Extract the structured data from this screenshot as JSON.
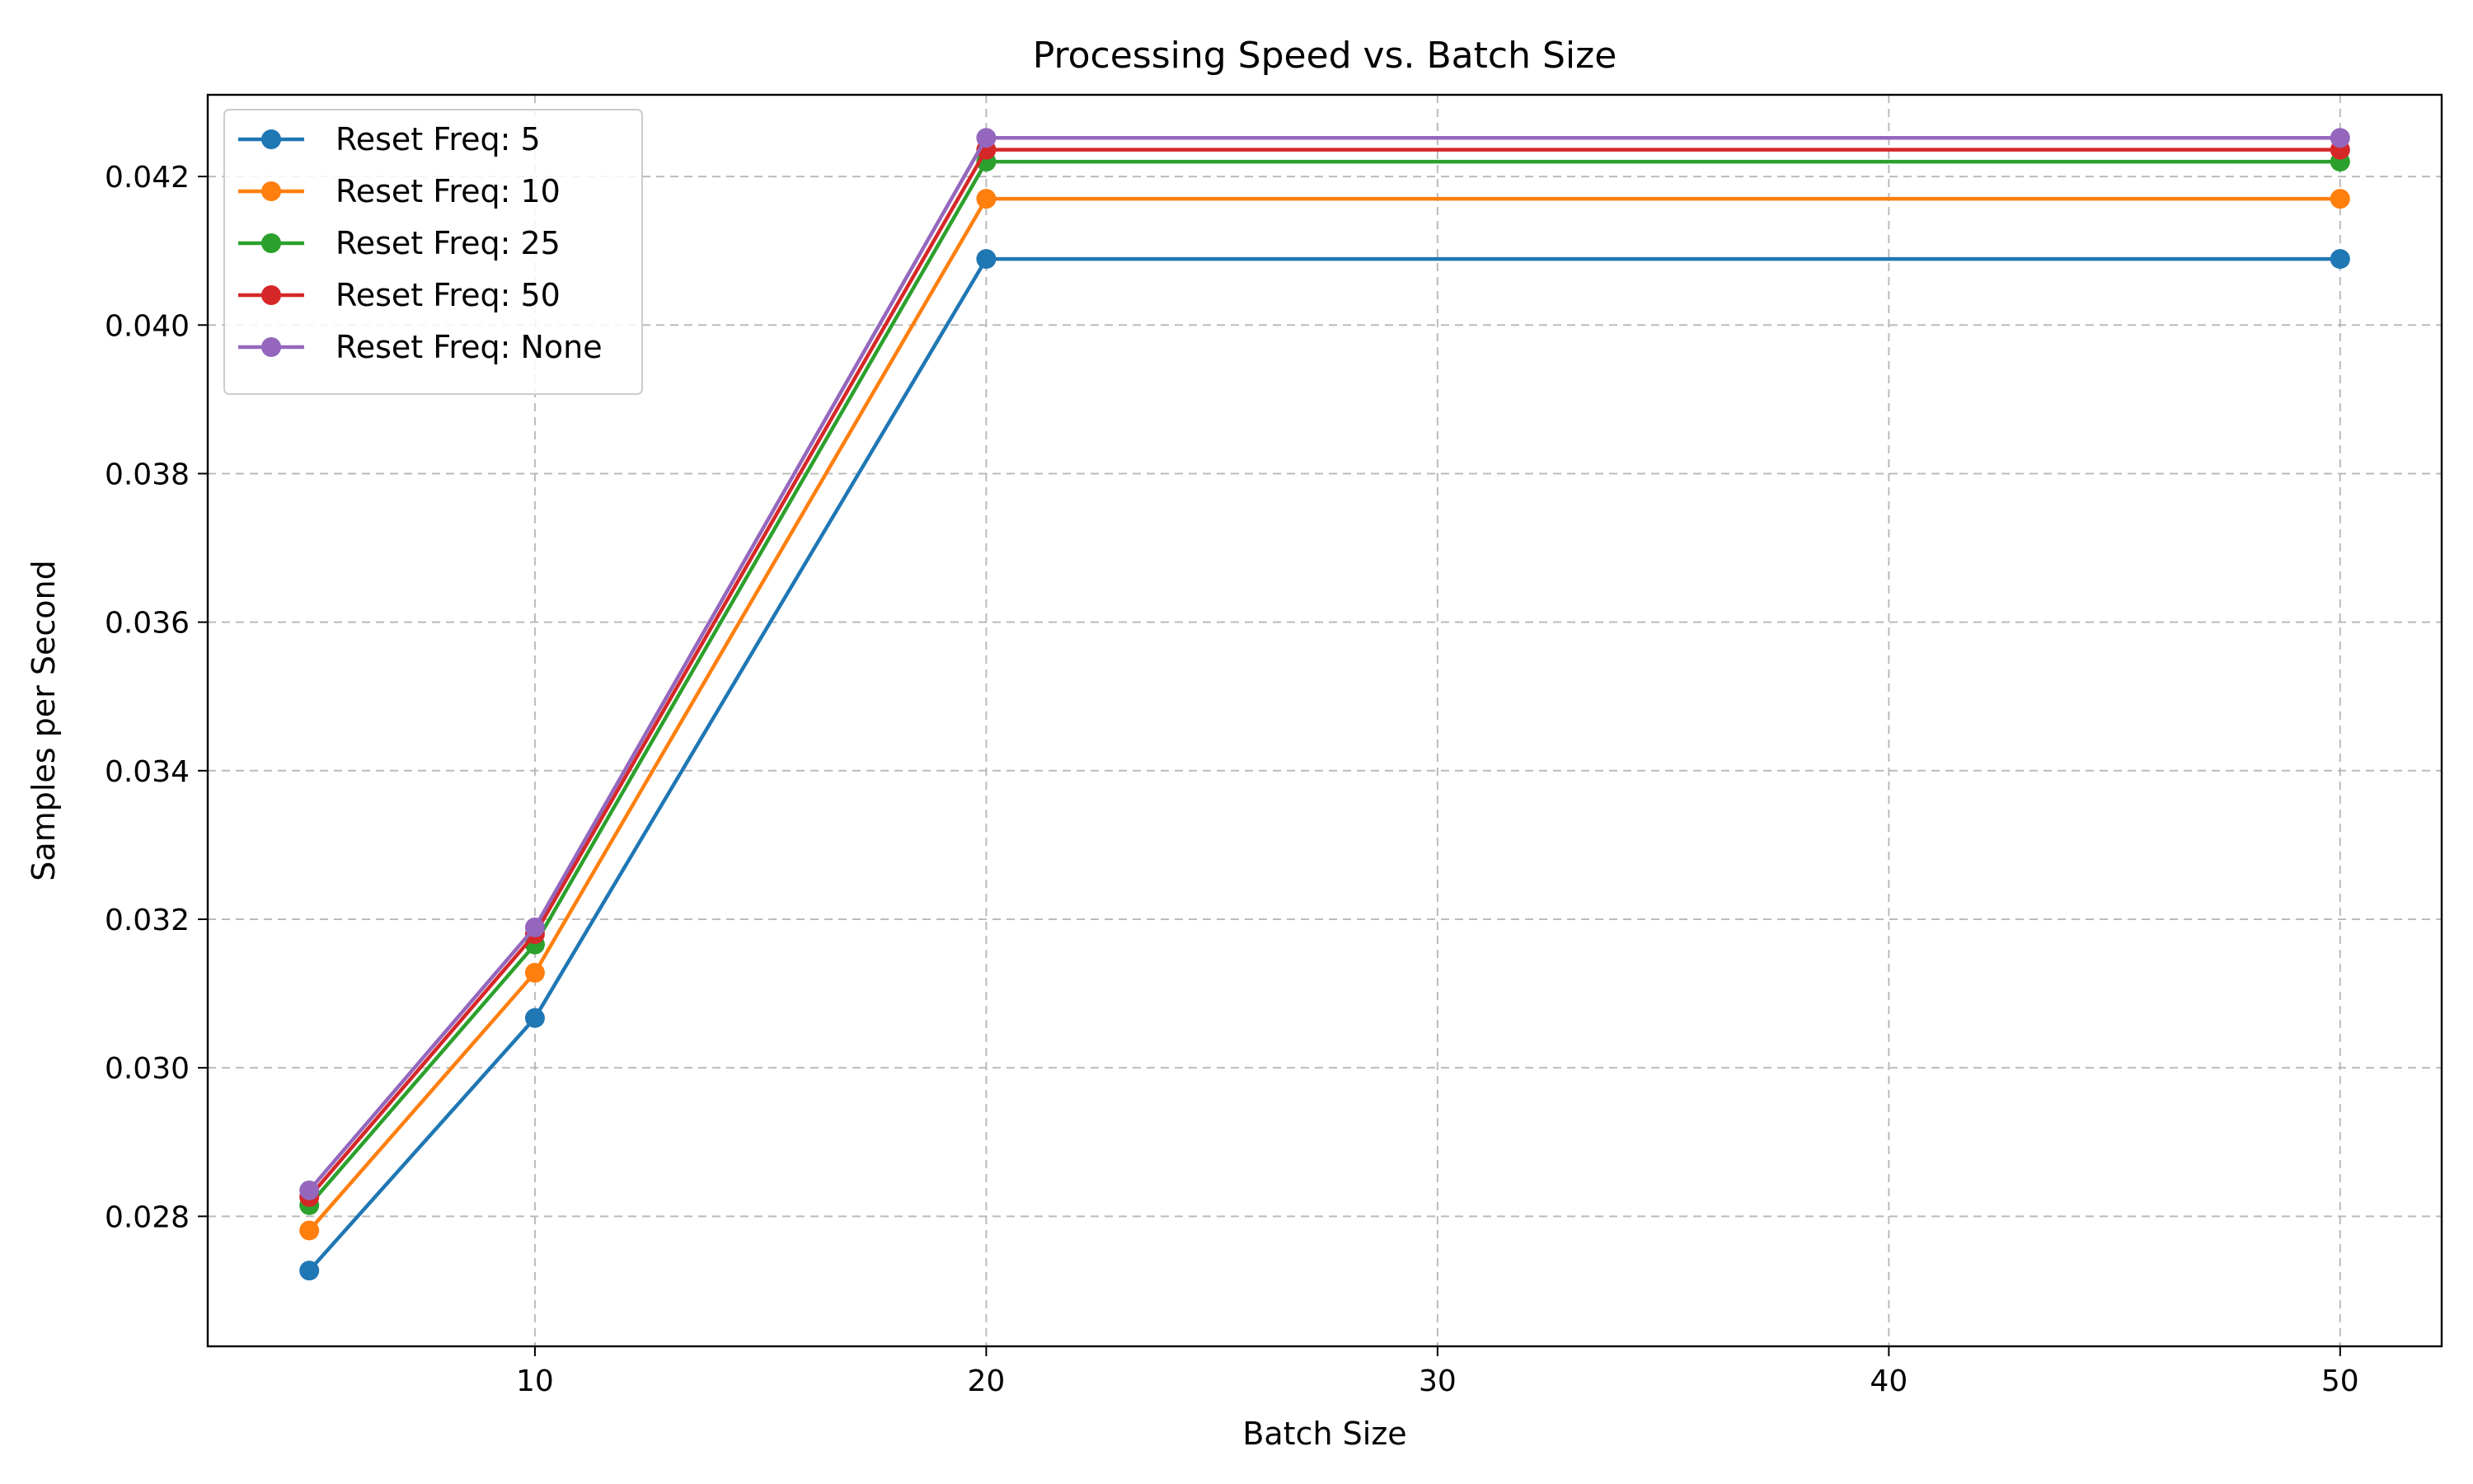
{
  "chart_data": {
    "type": "line",
    "title": "Processing Speed vs. Batch Size",
    "xlabel": "Batch Size",
    "ylabel": "Samples per Second",
    "x": [
      5,
      10,
      20,
      50
    ],
    "xlim": [
      2.75,
      52.25
    ],
    "ylim": [
      0.02625,
      0.0431
    ],
    "xticks": [
      10,
      20,
      30,
      40,
      50
    ],
    "yticks": [
      0.028,
      0.03,
      0.032,
      0.034,
      0.036,
      0.038,
      0.04,
      0.042
    ],
    "ytick_labels": [
      "0.028",
      "0.030",
      "0.032",
      "0.034",
      "0.036",
      "0.038",
      "0.040",
      "0.042"
    ],
    "grid": true,
    "legend_position": "top-left",
    "series": [
      {
        "name": "Reset Freq: 5",
        "color": "#1f77b4",
        "values": [
          0.02727,
          0.03067,
          0.04089,
          0.04089
        ]
      },
      {
        "name": "Reset Freq: 10",
        "color": "#ff7f0e",
        "values": [
          0.02781,
          0.03128,
          0.0417,
          0.0417
        ]
      },
      {
        "name": "Reset Freq: 25",
        "color": "#2ca02c",
        "values": [
          0.02815,
          0.03166,
          0.0422,
          0.0422
        ]
      },
      {
        "name": "Reset Freq: 50",
        "color": "#d62728",
        "values": [
          0.02826,
          0.0318,
          0.04236,
          0.04236
        ]
      },
      {
        "name": "Reset Freq: None",
        "color": "#9467bd",
        "values": [
          0.02835,
          0.03189,
          0.04252,
          0.04252
        ]
      }
    ]
  }
}
